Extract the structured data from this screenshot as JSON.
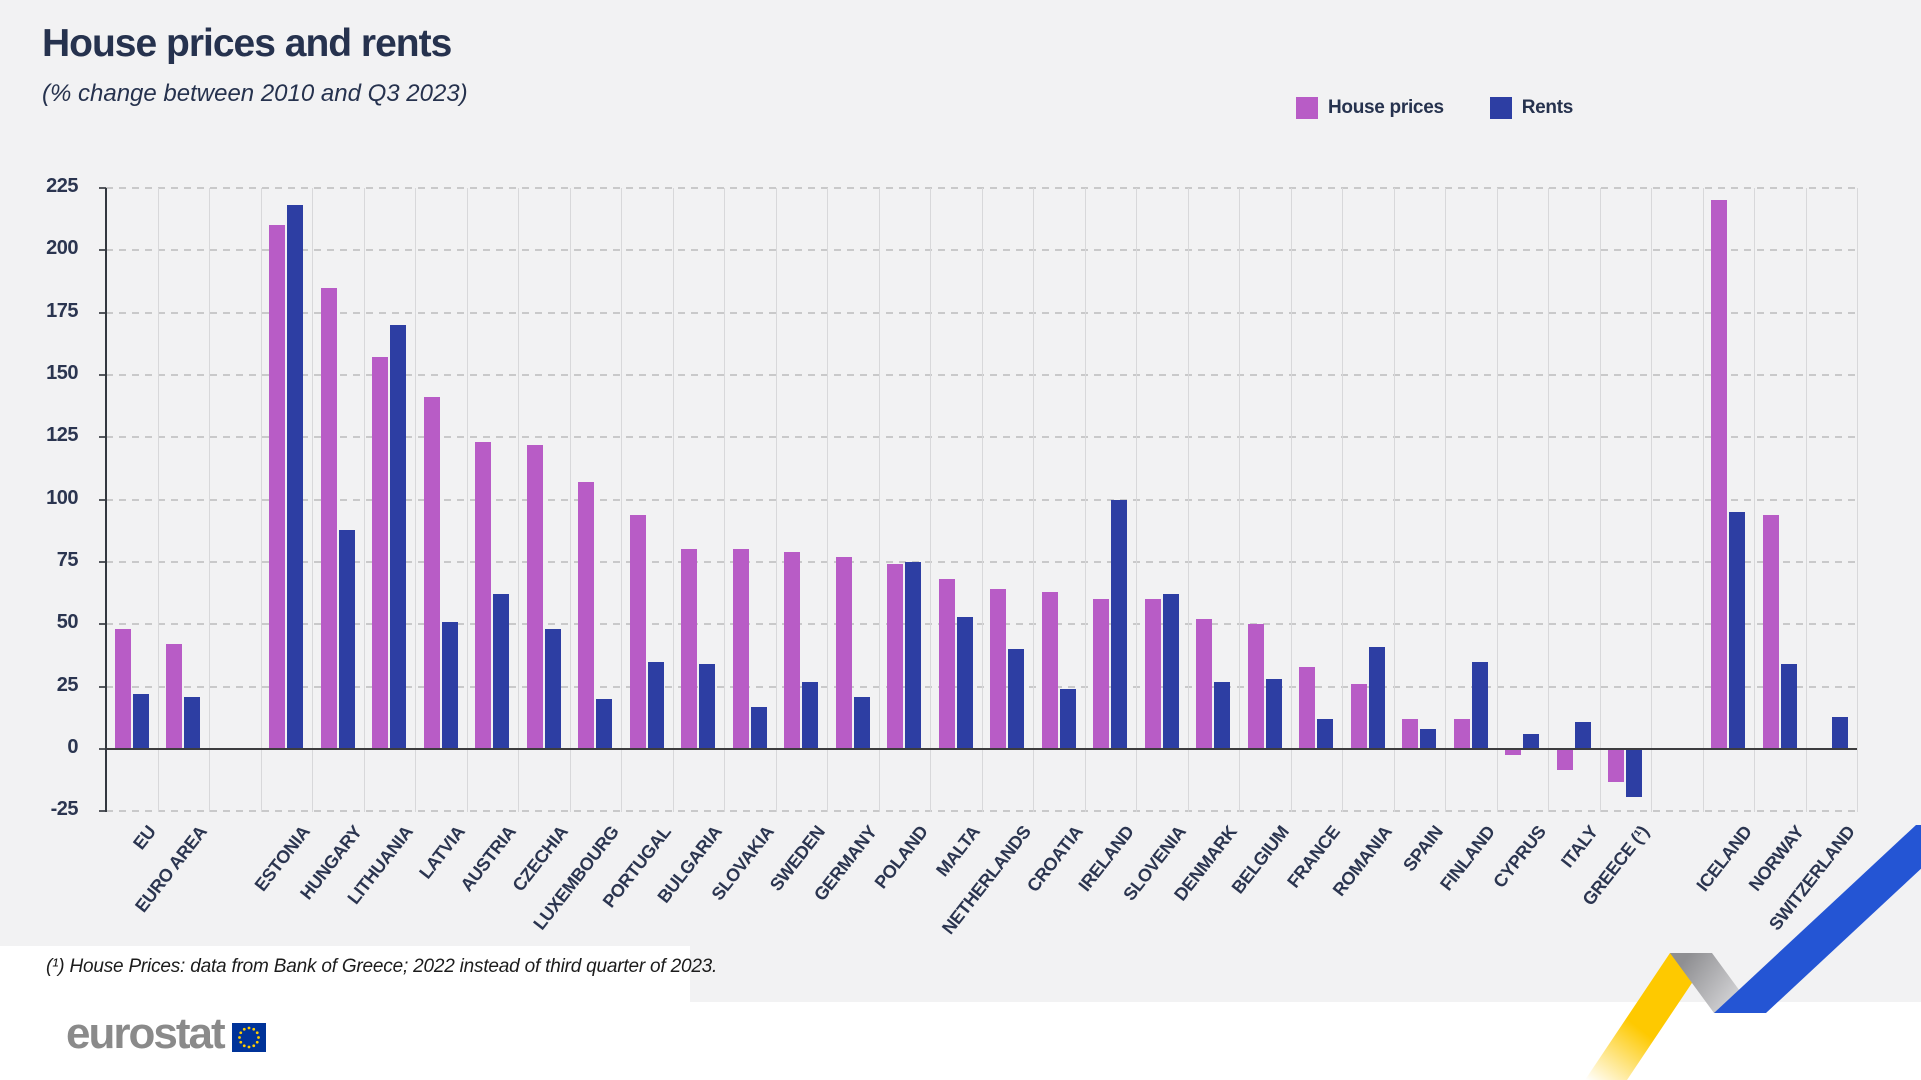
{
  "footnote": "(¹) House Prices: data from Bank of Greece; 2022 instead of third quarter of 2023.",
  "logo": {
    "text": "eurostat"
  },
  "colors": {
    "house": "#b85cc6",
    "rent": "#2d3ea3",
    "navy": "#2b3550",
    "background": "#f2f2f3",
    "grid_dashed": "#c9c9ca",
    "grid_vertical": "#d8d8da",
    "zero_line": "#3d3d3f",
    "flag_blue": "#003399",
    "star_yellow": "#ffcc00",
    "ribbon_yellow": "#fec900",
    "ribbon_blue": "#2455d4",
    "logo_gray": "#8a8a8a"
  },
  "chart_data": {
    "type": "bar",
    "title": "House prices and rents",
    "subtitle": "(% change between 2010 and Q3 2023)",
    "unit": "%",
    "ylim": [
      -25,
      225
    ],
    "ytick_step": 25,
    "grid": true,
    "legend_position": "top-right",
    "series": [
      {
        "name": "House prices",
        "color": "#b85cc6"
      },
      {
        "name": "Rents",
        "color": "#2d3ea3"
      }
    ],
    "categories": [
      {
        "label": "EU",
        "slot": 0,
        "bold": true,
        "house": 48,
        "rent": 22
      },
      {
        "label": "EURO AREA",
        "slot": 1,
        "bold": true,
        "house": 42,
        "rent": 21
      },
      {
        "label": "ESTONIA",
        "slot": 3,
        "house": 210,
        "rent": 218
      },
      {
        "label": "HUNGARY",
        "slot": 4,
        "house": 185,
        "rent": 88
      },
      {
        "label": "LITHUANIA",
        "slot": 5,
        "house": 157,
        "rent": 170
      },
      {
        "label": "LATVIA",
        "slot": 6,
        "house": 141,
        "rent": 51
      },
      {
        "label": "AUSTRIA",
        "slot": 7,
        "house": 123,
        "rent": 62
      },
      {
        "label": "CZECHIA",
        "slot": 8,
        "house": 122,
        "rent": 48
      },
      {
        "label": "LUXEMBOURG",
        "slot": 9,
        "house": 107,
        "rent": 20
      },
      {
        "label": "PORTUGAL",
        "slot": 10,
        "house": 94,
        "rent": 35
      },
      {
        "label": "BULGARIA",
        "slot": 11,
        "house": 80,
        "rent": 34
      },
      {
        "label": "SLOVAKIA",
        "slot": 12,
        "house": 80,
        "rent": 17
      },
      {
        "label": "SWEDEN",
        "slot": 13,
        "house": 79,
        "rent": 27
      },
      {
        "label": "GERMANY",
        "slot": 14,
        "house": 77,
        "rent": 21
      },
      {
        "label": "POLAND",
        "slot": 15,
        "house": 74,
        "rent": 75
      },
      {
        "label": "MALTA",
        "slot": 16,
        "house": 68,
        "rent": 53
      },
      {
        "label": "NETHERLANDS",
        "slot": 17,
        "house": 64,
        "rent": 40
      },
      {
        "label": "CROATIA",
        "slot": 18,
        "house": 63,
        "rent": 24
      },
      {
        "label": "IRELAND",
        "slot": 19,
        "house": 60,
        "rent": 100
      },
      {
        "label": "SLOVENIA",
        "slot": 20,
        "house": 60,
        "rent": 62
      },
      {
        "label": "DENMARK",
        "slot": 21,
        "house": 52,
        "rent": 27
      },
      {
        "label": "BELGIUM",
        "slot": 22,
        "house": 50,
        "rent": 28
      },
      {
        "label": "FRANCE",
        "slot": 23,
        "house": 33,
        "rent": 12
      },
      {
        "label": "ROMANIA",
        "slot": 24,
        "house": 26,
        "rent": 41
      },
      {
        "label": "SPAIN",
        "slot": 25,
        "house": 12,
        "rent": 8
      },
      {
        "label": "FINLAND",
        "slot": 26,
        "house": 12,
        "rent": 35
      },
      {
        "label": "CYPRUS",
        "slot": 27,
        "house": -2,
        "rent": 6
      },
      {
        "label": "ITALY",
        "slot": 28,
        "house": -8,
        "rent": 11
      },
      {
        "label": "GREECE (¹)",
        "slot": 29,
        "house": -13,
        "rent": -19
      },
      {
        "label": "ICELAND",
        "slot": 31,
        "house": 220,
        "rent": 95
      },
      {
        "label": "NORWAY",
        "slot": 32,
        "house": 94,
        "rent": 34
      },
      {
        "label": "SWITZERLAND",
        "slot": 33,
        "house": null,
        "rent": 13
      }
    ]
  }
}
